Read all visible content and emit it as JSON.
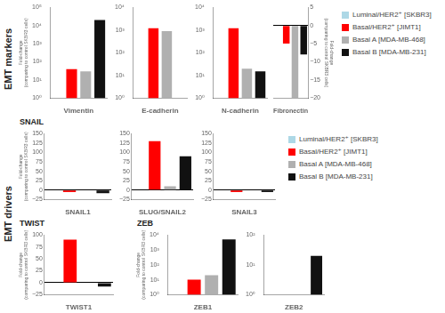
{
  "chart_data": [
    {
      "type": "bar",
      "xlabel": "Vimentin",
      "ylabel": "Fold-change\n(comparing to control SKBR3 cells)",
      "annotations": [
        "EMT markers"
      ],
      "categories": [
        "Luminal/HER2⁺ [SKBR3]",
        "Basal/HER2⁺ [JIMT1]",
        "Basal A [MDA-MB-468]",
        "Basal B [MDA-MB-231]"
      ],
      "values": [
        1,
        40,
        30,
        20000
      ],
      "colors": [
        "#add8e6",
        "#ff0000",
        "#b0b0b0",
        "#111111"
      ],
      "log": "y",
      "ylim": [
        1,
        100000
      ],
      "yticks": [
        {
          "value": 1,
          "label": "10⁰"
        },
        {
          "value": 10,
          "label": "10¹"
        },
        {
          "value": 100,
          "label": "10²"
        },
        {
          "value": 1000,
          "label": "10³"
        },
        {
          "value": 10000,
          "label": "10⁴"
        },
        {
          "value": 100000,
          "label": "10⁵"
        }
      ],
      "grid": false,
      "tick_labels": "y"
    },
    {
      "type": "bar",
      "xlabel": "E-cadherin",
      "categories": [
        "Luminal/HER2⁺ [SKBR3]",
        "Basal/HER2⁺ [JIMT1]",
        "Basal A [MDA-MB-468]",
        "Basal B [MDA-MB-231]"
      ],
      "values": [
        1,
        1200,
        900,
        1
      ],
      "colors": [
        "#add8e6",
        "#ff0000",
        "#b0b0b0",
        "#111111"
      ],
      "log": "y",
      "ylim": [
        1,
        10000
      ],
      "yticks": [
        {
          "value": 1,
          "label": "10⁰"
        },
        {
          "value": 10,
          "label": "10¹"
        },
        {
          "value": 100,
          "label": "10²"
        },
        {
          "value": 1000,
          "label": "10³"
        },
        {
          "value": 10000,
          "label": "10⁴"
        }
      ],
      "grid": false,
      "tick_labels": "y"
    },
    {
      "type": "bar",
      "xlabel": "N-cadherin",
      "categories": [
        "Luminal/HER2⁺ [SKBR3]",
        "Basal/HER2⁺ [JIMT1]",
        "Basal A [MDA-MB-468]",
        "Basal B [MDA-MB-231]"
      ],
      "values": [
        1,
        1200,
        20,
        15
      ],
      "colors": [
        "#add8e6",
        "#ff0000",
        "#b0b0b0",
        "#111111"
      ],
      "log": "y",
      "ylim": [
        1,
        10000
      ],
      "yticks": [
        {
          "value": 1,
          "label": "10⁰"
        },
        {
          "value": 10,
          "label": "10¹"
        },
        {
          "value": 100,
          "label": "10²"
        },
        {
          "value": 1000,
          "label": "10³"
        },
        {
          "value": 10000,
          "label": "10⁴"
        }
      ],
      "grid": false,
      "tick_labels": "y"
    },
    {
      "type": "bar",
      "xlabel": "Fibronectin",
      "ylabel": "Fold-change\n(comparing to control SKBR3 cells)",
      "categories": [
        "Luminal/HER2⁺ [SKBR3]",
        "Basal/HER2⁺ [JIMT1]",
        "Basal A [MDA-MB-468]",
        "Basal B [MDA-MB-231]"
      ],
      "values": [
        0,
        -5,
        -20,
        -8
      ],
      "colors": [
        "#add8e6",
        "#ff0000",
        "#b0b0b0",
        "#111111"
      ],
      "ylim": [
        -20,
        5
      ],
      "yticks": [
        {
          "value": -20,
          "label": "−20"
        },
        {
          "value": -15,
          "label": "−15"
        },
        {
          "value": -10,
          "label": "−10"
        },
        {
          "value": -5,
          "label": "−5"
        },
        0,
        5
      ],
      "grid": false,
      "tick_labels": "y",
      "legend": "right"
    },
    {
      "type": "bar",
      "xlabel": "SNAIL1",
      "ylabel": "Fold-change\n(comparing to control SKBR3 cells)",
      "annotations": [
        "EMT drivers",
        "SNAIL"
      ],
      "categories": [
        "Luminal/HER2⁺ [SKBR3]",
        "Basal/HER2⁺ [JIMT1]",
        "Basal A [MDA-MB-468]",
        "Basal B [MDA-MB-231]"
      ],
      "values": [
        0,
        -5,
        -1,
        -8
      ],
      "colors": [
        "#add8e6",
        "#ff0000",
        "#b0b0b0",
        "#111111"
      ],
      "ylim": [
        -25,
        150
      ],
      "yticks": [
        {
          "value": -25,
          "label": "−25"
        },
        0,
        25,
        50,
        75,
        100,
        125,
        150
      ],
      "grid": false,
      "tick_labels": "y"
    },
    {
      "type": "bar",
      "xlabel": "SLUG/SNAIL2",
      "categories": [
        "Luminal/HER2⁺ [SKBR3]",
        "Basal/HER2⁺ [JIMT1]",
        "Basal A [MDA-MB-468]",
        "Basal B [MDA-MB-231]"
      ],
      "values": [
        0,
        130,
        10,
        90
      ],
      "colors": [
        "#add8e6",
        "#ff0000",
        "#b0b0b0",
        "#111111"
      ],
      "ylim": [
        -25,
        150
      ],
      "yticks": [
        {
          "value": -25,
          "label": "−25"
        },
        0,
        25,
        50,
        75,
        100,
        125,
        150
      ],
      "grid": false,
      "tick_labels": "y"
    },
    {
      "type": "bar",
      "xlabel": "SNAIL3",
      "categories": [
        "Luminal/HER2⁺ [SKBR3]",
        "Basal/HER2⁺ [JIMT1]",
        "Basal A [MDA-MB-468]",
        "Basal B [MDA-MB-231]"
      ],
      "values": [
        0,
        -5,
        -1,
        -5
      ],
      "colors": [
        "#add8e6",
        "#ff0000",
        "#b0b0b0",
        "#111111"
      ],
      "ylim": [
        -25,
        150
      ],
      "yticks": [
        {
          "value": -25,
          "label": "−25"
        },
        0,
        25,
        50,
        75,
        100,
        125,
        150
      ],
      "grid": false,
      "tick_labels": "y",
      "legend": "right"
    },
    {
      "type": "bar",
      "xlabel": "TWIST1",
      "ylabel": "Fold-change\n(comparing to control SKBR3 cells)",
      "annotations": [
        "TWIST"
      ],
      "categories": [
        "Luminal/HER2⁺ [SKBR3]",
        "Basal/HER2⁺ [JIMT1]",
        "Basal A [MDA-MB-468]",
        "Basal B [MDA-MB-231]"
      ],
      "values": [
        0,
        90,
        1,
        -8
      ],
      "colors": [
        "#add8e6",
        "#ff0000",
        "#b0b0b0",
        "#111111"
      ],
      "ylim": [
        -25,
        100
      ],
      "yticks": [
        {
          "value": -25,
          "label": "−25"
        },
        0,
        25,
        50,
        75,
        100
      ],
      "grid": false,
      "tick_labels": "y"
    },
    {
      "type": "bar",
      "xlabel": "ZEB1",
      "ylabel": "Fold-change\n(comparing to control SKBR3 cells)",
      "annotations": [
        "ZEB"
      ],
      "categories": [
        "Luminal/HER2⁺ [SKBR3]",
        "Basal/HER2⁺ [JIMT1]",
        "Basal A [MDA-MB-468]",
        "Basal B [MDA-MB-231]"
      ],
      "values": [
        1,
        10,
        20,
        5000
      ],
      "colors": [
        "#add8e6",
        "#ff0000",
        "#b0b0b0",
        "#111111"
      ],
      "log": "y",
      "ylim": [
        1,
        10000
      ],
      "yticks": [
        {
          "value": 1,
          "label": "10⁰"
        },
        {
          "value": 10,
          "label": "10¹"
        },
        {
          "value": 100,
          "label": "10²"
        },
        {
          "value": 1000,
          "label": "10³"
        },
        {
          "value": 10000,
          "label": "10⁴"
        }
      ],
      "grid": false,
      "tick_labels": "y"
    },
    {
      "type": "bar",
      "xlabel": "ZEB2",
      "categories": [
        "Luminal/HER2⁺ [SKBR3]",
        "Basal/HER2⁺ [JIMT1]",
        "Basal A [MDA-MB-468]",
        "Basal B [MDA-MB-231]"
      ],
      "values": [
        1,
        1,
        1,
        20
      ],
      "colors": [
        "#add8e6",
        "#ff0000",
        "#b0b0b0",
        "#111111"
      ],
      "log": "y",
      "ylim": [
        1,
        100
      ],
      "yticks": [
        {
          "value": 1,
          "label": "10⁰"
        },
        {
          "value": 10,
          "label": "10¹"
        },
        {
          "value": 100,
          "label": "10²"
        }
      ],
      "grid": false,
      "tick_labels": "y"
    }
  ]
}
